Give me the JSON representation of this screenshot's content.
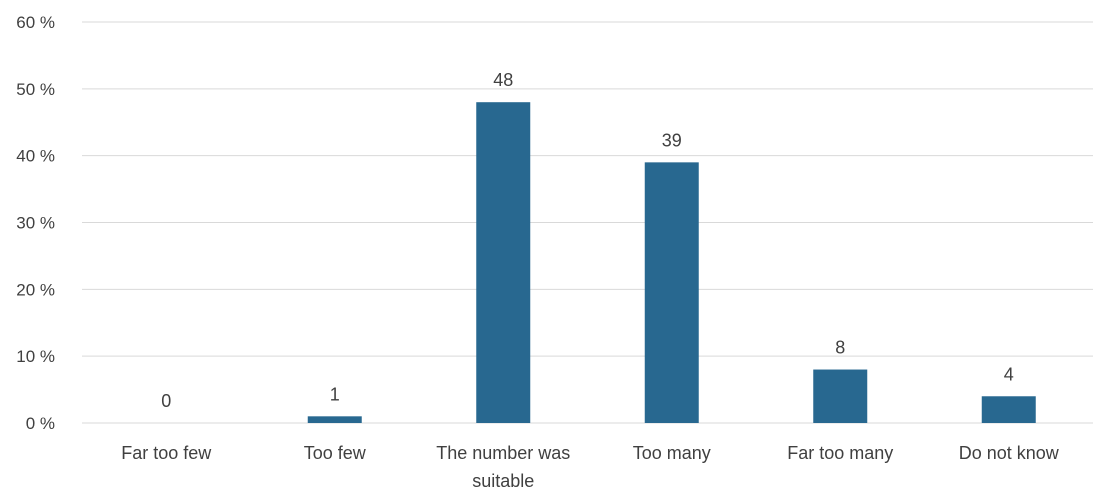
{
  "chart_data": {
    "type": "bar",
    "categories": [
      [
        "Far too few"
      ],
      [
        "Too few"
      ],
      [
        "The number was",
        "suitable"
      ],
      [
        "Too many"
      ],
      [
        "Far too many"
      ],
      [
        "Do not know"
      ]
    ],
    "values": [
      0,
      1,
      48,
      39,
      8,
      4
    ],
    "value_labels": [
      "0",
      "1",
      "48",
      "39",
      "8",
      "4"
    ],
    "y_ticks": [
      0,
      10,
      20,
      30,
      40,
      50,
      60
    ],
    "y_tick_labels": [
      "0 %",
      "10 %",
      "20 %",
      "30 %",
      "40 %",
      "50 %",
      "60 %"
    ],
    "ylim": [
      0,
      60
    ],
    "title": "",
    "xlabel": "",
    "ylabel": "",
    "grid": true,
    "legend": "none",
    "bar_color": "#286890",
    "grid_color": "#d9d9d9",
    "text_color": "#404040"
  }
}
